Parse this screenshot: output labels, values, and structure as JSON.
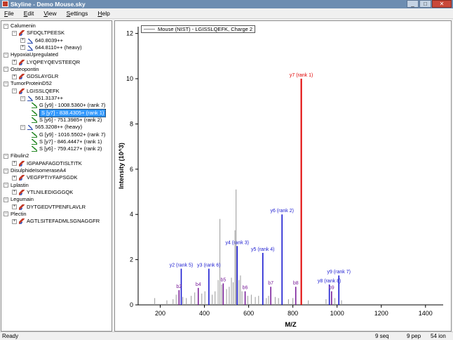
{
  "window": {
    "title": "Skyline - Demo Mouse.sky",
    "minimize": "_",
    "maximize": "□",
    "close": "✕"
  },
  "menu": [
    {
      "label": "File",
      "underline": "F",
      "rest": "ile"
    },
    {
      "label": "Edit",
      "underline": "E",
      "rest": "dit"
    },
    {
      "label": "View",
      "underline": "V",
      "rest": "iew"
    },
    {
      "label": "Settings",
      "underline": "S",
      "rest": "ettings"
    },
    {
      "label": "Help",
      "underline": "H",
      "rest": "elp"
    }
  ],
  "tree": {
    "rows": [
      {
        "level": 0,
        "expander": "−",
        "icon": "",
        "text": "Calumenin"
      },
      {
        "level": 1,
        "expander": "−",
        "icon": "peptide",
        "text": "SFDQLTPEESK"
      },
      {
        "level": 2,
        "expander": "+",
        "icon": "precursor",
        "text": "640.8039++"
      },
      {
        "level": 2,
        "expander": "+",
        "icon": "precursor",
        "text": "644.8110++ (heavy)"
      },
      {
        "level": 0,
        "expander": "−",
        "icon": "",
        "text": "HypoxiaUpregulated"
      },
      {
        "level": 1,
        "expander": "+",
        "icon": "peptide",
        "text": "LYQPEYQEVSTEEQR"
      },
      {
        "level": 0,
        "expander": "−",
        "icon": "",
        "text": "Osteopontin"
      },
      {
        "level": 1,
        "expander": "+",
        "icon": "peptide",
        "text": "GDSLAYGLR"
      },
      {
        "level": 0,
        "expander": "−",
        "icon": "",
        "text": "TumorProteinD52"
      },
      {
        "level": 1,
        "expander": "−",
        "icon": "peptide",
        "text": "LGISSLQEFK"
      },
      {
        "level": 2,
        "expander": "−",
        "icon": "precursor",
        "text": "561.3137++"
      },
      {
        "level": 3,
        "expander": "",
        "icon": "transition",
        "text": "G [y9] - 1008.5360+ (rank 7)"
      },
      {
        "level": 3,
        "expander": "",
        "icon": "transition",
        "text": "S [y7] - 838.4305+ (rank 1)",
        "selected": true
      },
      {
        "level": 3,
        "expander": "",
        "icon": "transition",
        "text": "S [y6] - 751.3985+ (rank 2)"
      },
      {
        "level": 2,
        "expander": "−",
        "icon": "precursor",
        "text": "565.3208++ (heavy)"
      },
      {
        "level": 3,
        "expander": "",
        "icon": "transition",
        "text": "G [y9] - 1016.5502+ (rank 7)"
      },
      {
        "level": 3,
        "expander": "",
        "icon": "transition",
        "text": "S [y7] - 846.4447+ (rank 1)"
      },
      {
        "level": 3,
        "expander": "",
        "icon": "transition",
        "text": "S [y6] - 759.4127+ (rank 2)"
      },
      {
        "level": 0,
        "expander": "−",
        "icon": "",
        "text": "Fibulin2"
      },
      {
        "level": 1,
        "expander": "+",
        "icon": "peptide",
        "text": "IGPAPAFAGDTISLTITK"
      },
      {
        "level": 0,
        "expander": "−",
        "icon": "",
        "text": "DisulphideIsomeraseA4"
      },
      {
        "level": 1,
        "expander": "+",
        "icon": "peptide",
        "text": "VEGFPTIYFAPSGDK"
      },
      {
        "level": 0,
        "expander": "−",
        "icon": "",
        "text": "Lplastin"
      },
      {
        "level": 1,
        "expander": "+",
        "icon": "peptide",
        "text": "YTLNILEDIGGGQK"
      },
      {
        "level": 0,
        "expander": "−",
        "icon": "",
        "text": "Legumain"
      },
      {
        "level": 1,
        "expander": "+",
        "icon": "peptide",
        "text": "DYTGEDVTPENFLAVLR"
      },
      {
        "level": 0,
        "expander": "−",
        "icon": "",
        "text": "Plectin"
      },
      {
        "level": 1,
        "expander": "+",
        "icon": "peptide",
        "text": "AGTLSITEFADMLSGNAGGFR"
      }
    ]
  },
  "graph": {
    "legend": "Mouse (NIST) - LGISSLQEFK, Charge 2"
  },
  "colors": {
    "y_ion": "#1a1ad0",
    "b_ion": "#7a1f9a",
    "selected_ion": "#e00000",
    "unmatched": "#999999"
  },
  "chart_data": {
    "type": "bar",
    "title": "",
    "xlabel": "M/Z",
    "ylabel": "Intensity (10^3)",
    "xlim": [
      100,
      1480
    ],
    "ylim": [
      0,
      12.3
    ],
    "xticks": [
      200,
      400,
      600,
      800,
      1000,
      1200,
      1400
    ],
    "yticks": [
      0,
      2,
      4,
      6,
      8,
      10,
      12
    ],
    "grid": false,
    "legend_position": "top-left",
    "series": [
      {
        "name": "matched",
        "peaks": [
          {
            "mz": 295,
            "intensity": 1.6,
            "label": "y2 (rank 5)",
            "ion": "y"
          },
          {
            "mz": 420,
            "intensity": 1.6,
            "label": "y3 (rank 6)",
            "ion": "y"
          },
          {
            "mz": 548,
            "intensity": 2.6,
            "label": "y4 (rank 3)",
            "ion": "y"
          },
          {
            "mz": 664,
            "intensity": 2.3,
            "label": "y5 (rank 4)",
            "ion": "y"
          },
          {
            "mz": 751,
            "intensity": 4.0,
            "label": "y6 (rank 2)",
            "ion": "y"
          },
          {
            "mz": 838,
            "intensity": 10.0,
            "label": "y7 (rank 1)",
            "ion": "selected"
          },
          {
            "mz": 965,
            "intensity": 0.9,
            "label": "y8 (rank 8)",
            "ion": "y"
          },
          {
            "mz": 1008,
            "intensity": 1.3,
            "label": "y9 (rank 7)",
            "ion": "y"
          },
          {
            "mz": 285,
            "intensity": 0.65,
            "label": "b2",
            "ion": "b"
          },
          {
            "mz": 372,
            "intensity": 0.75,
            "label": "b4",
            "ion": "b"
          },
          {
            "mz": 485,
            "intensity": 0.95,
            "label": "b5",
            "ion": "b"
          },
          {
            "mz": 584,
            "intensity": 0.6,
            "label": "b6",
            "ion": "b"
          },
          {
            "mz": 700,
            "intensity": 0.8,
            "label": "b7",
            "ion": "b"
          },
          {
            "mz": 813,
            "intensity": 0.8,
            "label": "b8",
            "ion": "b"
          },
          {
            "mz": 975,
            "intensity": 0.6,
            "label": "b9",
            "ion": "b"
          }
        ]
      },
      {
        "name": "unmatched",
        "peaks": [
          {
            "mz": 175,
            "intensity": 0.3
          },
          {
            "mz": 230,
            "intensity": 0.2
          },
          {
            "mz": 258,
            "intensity": 0.25
          },
          {
            "mz": 272,
            "intensity": 0.45
          },
          {
            "mz": 302,
            "intensity": 0.35
          },
          {
            "mz": 318,
            "intensity": 0.3
          },
          {
            "mz": 340,
            "intensity": 0.4
          },
          {
            "mz": 356,
            "intensity": 0.55
          },
          {
            "mz": 388,
            "intensity": 0.5
          },
          {
            "mz": 402,
            "intensity": 0.6
          },
          {
            "mz": 435,
            "intensity": 0.45
          },
          {
            "mz": 448,
            "intensity": 0.6
          },
          {
            "mz": 462,
            "intensity": 1.1
          },
          {
            "mz": 470,
            "intensity": 3.8
          },
          {
            "mz": 478,
            "intensity": 0.9
          },
          {
            "mz": 500,
            "intensity": 0.7
          },
          {
            "mz": 512,
            "intensity": 0.8
          },
          {
            "mz": 522,
            "intensity": 1.2
          },
          {
            "mz": 530,
            "intensity": 1.0
          },
          {
            "mz": 538,
            "intensity": 3.3
          },
          {
            "mz": 543,
            "intensity": 5.1
          },
          {
            "mz": 556,
            "intensity": 1.1
          },
          {
            "mz": 563,
            "intensity": 1.3
          },
          {
            "mz": 570,
            "intensity": 0.6
          },
          {
            "mz": 596,
            "intensity": 0.4
          },
          {
            "mz": 612,
            "intensity": 0.45
          },
          {
            "mz": 630,
            "intensity": 0.35
          },
          {
            "mz": 645,
            "intensity": 0.4
          },
          {
            "mz": 680,
            "intensity": 0.3
          },
          {
            "mz": 690,
            "intensity": 0.4
          },
          {
            "mz": 720,
            "intensity": 0.35
          },
          {
            "mz": 735,
            "intensity": 0.3
          },
          {
            "mz": 780,
            "intensity": 0.25
          },
          {
            "mz": 800,
            "intensity": 0.3
          },
          {
            "mz": 870,
            "intensity": 0.2
          },
          {
            "mz": 950,
            "intensity": 0.25
          },
          {
            "mz": 990,
            "intensity": 0.3
          },
          {
            "mz": 1020,
            "intensity": 0.2
          }
        ]
      }
    ]
  },
  "status": {
    "ready": "Ready",
    "seq": "9 seq",
    "pep": "9 pep",
    "ion": "54 ion"
  }
}
